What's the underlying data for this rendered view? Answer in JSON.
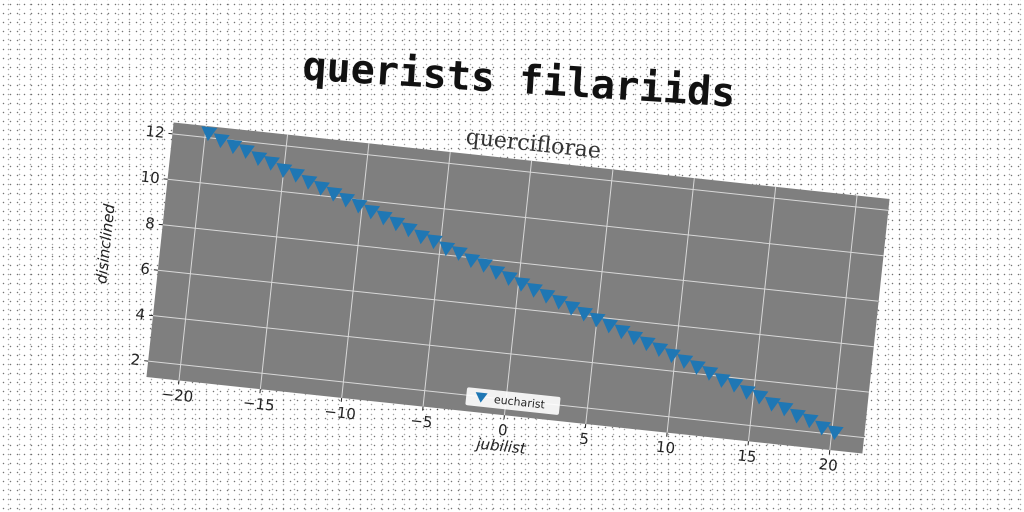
{
  "suptitle": "querists filariids",
  "colors": {
    "plot_background": "#7f7f7f",
    "grid": "#d8d8d8",
    "marker": "#1f77b4"
  },
  "chart_data": {
    "type": "scatter",
    "title": "querciflorae",
    "xlabel": "jubilist",
    "ylabel": "disinclined",
    "xlim": [
      -22,
      22
    ],
    "ylim": [
      1.3,
      12.5
    ],
    "xticks": [
      -20,
      -15,
      -10,
      -5,
      0,
      5,
      10,
      15,
      20
    ],
    "yticks": [
      2,
      4,
      6,
      8,
      10,
      12
    ],
    "grid": true,
    "legend_position": "lower-center",
    "marker": "triangle-down",
    "series": [
      {
        "name": "eucharist",
        "x": [
          -19.8,
          -19.0,
          -18.2,
          -17.4,
          -16.6,
          -15.8,
          -15.0,
          -14.2,
          -13.4,
          -12.6,
          -11.8,
          -11.0,
          -10.2,
          -9.4,
          -8.6,
          -7.8,
          -7.0,
          -6.2,
          -5.4,
          -4.6,
          -3.8,
          -3.0,
          -2.2,
          -1.4,
          -0.6,
          0.2,
          1.0,
          1.8,
          2.6,
          3.4,
          4.2,
          5.0,
          5.8,
          6.6,
          7.4,
          8.2,
          9.0,
          9.8,
          10.6,
          11.4,
          12.2,
          13.0,
          13.8,
          14.6,
          15.4,
          16.2,
          17.0,
          17.8,
          18.6,
          19.4,
          20.2
        ],
        "y": [
          12.2,
          11.95,
          11.75,
          11.6,
          11.35,
          11.2,
          10.95,
          10.8,
          10.55,
          10.35,
          10.15,
          9.95,
          9.75,
          9.55,
          9.35,
          9.15,
          8.95,
          8.7,
          8.55,
          8.3,
          8.15,
          7.9,
          7.75,
          7.5,
          7.3,
          7.1,
          6.9,
          6.7,
          6.5,
          6.3,
          6.1,
          5.9,
          5.7,
          5.5,
          5.3,
          5.1,
          4.9,
          4.7,
          4.5,
          4.3,
          4.1,
          3.85,
          3.7,
          3.45,
          3.3,
          3.05,
          2.9,
          2.65,
          2.5,
          2.25,
          2.1
        ]
      }
    ]
  }
}
